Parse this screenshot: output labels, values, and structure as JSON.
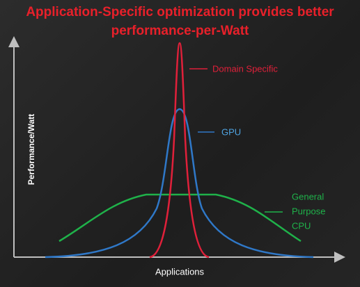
{
  "title": "Application-Specific optimization provides better performance-per-Watt",
  "axes": {
    "y_label": "Performance/Watt",
    "x_label": "Applications"
  },
  "curves": [
    {
      "label": "Domain Specific"
    },
    {
      "label": "GPU"
    },
    {
      "label_lines": [
        "General",
        "Purpose",
        "CPU"
      ]
    }
  ]
}
